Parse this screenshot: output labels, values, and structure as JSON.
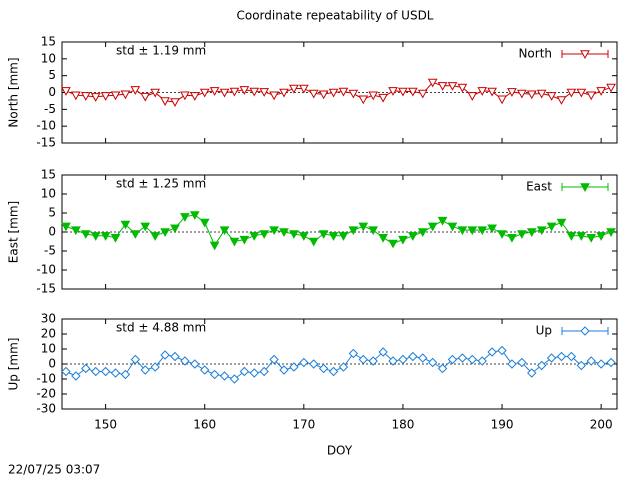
{
  "chart_data": [
    {
      "type": "line",
      "title": "Coordinate repeatability of USDL",
      "ylabel": "North [mm]",
      "annotation": "std ± 1.19 mm",
      "x": [
        146,
        147,
        148,
        149,
        150,
        151,
        152,
        153,
        154,
        155,
        156,
        157,
        158,
        159,
        160,
        161,
        162,
        163,
        164,
        165,
        166,
        167,
        168,
        169,
        170,
        171,
        172,
        173,
        174,
        175,
        176,
        177,
        178,
        179,
        180,
        181,
        182,
        183,
        184,
        185,
        186,
        187,
        188,
        189,
        190,
        191,
        192,
        193,
        194,
        195,
        196,
        197,
        198,
        199,
        200,
        201
      ],
      "series": [
        {
          "name": "North",
          "color": "#cc0000",
          "marker": "triangle-open",
          "values": [
            0.5,
            -0.8,
            -1,
            -1.3,
            -1,
            -0.8,
            -0.5,
            0.8,
            -1.2,
            0,
            -2.5,
            -2.8,
            -0.8,
            -1,
            0,
            0.5,
            0,
            0.3,
            0.8,
            0.3,
            0.2,
            -0.8,
            0,
            1.2,
            1.2,
            -0.3,
            -0.5,
            0,
            0.3,
            -0.3,
            -2,
            -0.8,
            -1.5,
            0.5,
            0.3,
            0.3,
            -0.3,
            3,
            2,
            2,
            1.5,
            -1,
            0.5,
            0.3,
            -2,
            0.2,
            -0.3,
            -0.5,
            -0.3,
            -1,
            -2.2,
            0,
            0,
            -0.8,
            0.5,
            1.5
          ]
        }
      ],
      "xlim": [
        145.6,
        201.6
      ],
      "xticks": [
        150,
        160,
        170,
        180,
        190,
        200
      ],
      "ylim": [
        -15,
        15
      ],
      "yticks": [
        -15,
        -10,
        -5,
        0,
        5,
        10,
        15
      ]
    },
    {
      "type": "line",
      "ylabel": "East [mm]",
      "annotation": "std ± 1.25 mm",
      "x": [
        146,
        147,
        148,
        149,
        150,
        151,
        152,
        153,
        154,
        155,
        156,
        157,
        158,
        159,
        160,
        161,
        162,
        163,
        164,
        165,
        166,
        167,
        168,
        169,
        170,
        171,
        172,
        173,
        174,
        175,
        176,
        177,
        178,
        179,
        180,
        181,
        182,
        183,
        184,
        185,
        186,
        187,
        188,
        189,
        190,
        191,
        192,
        193,
        194,
        195,
        196,
        197,
        198,
        199,
        200,
        201
      ],
      "series": [
        {
          "name": "East",
          "color": "#00bb00",
          "marker": "triangle-filled",
          "values": [
            1.5,
            0.5,
            -0.5,
            -1,
            -1,
            -1.5,
            2,
            -0.5,
            1.5,
            -1,
            0,
            1,
            4,
            4.5,
            2.5,
            -3.5,
            0.5,
            -2.5,
            -2,
            -1,
            -0.5,
            0.5,
            0,
            -0.5,
            -1,
            -2.5,
            -0.5,
            -1,
            -1,
            0.5,
            1.5,
            0.5,
            -1.5,
            -3,
            -2,
            -1,
            0,
            1.5,
            3,
            1.5,
            0.5,
            0.5,
            0.5,
            1,
            -0.5,
            -1.5,
            -0.5,
            0,
            0.5,
            1.5,
            2.5,
            -1,
            -1,
            -1.5,
            -1,
            0
          ]
        }
      ],
      "xlim": [
        145.6,
        201.6
      ],
      "xticks": [
        150,
        160,
        170,
        180,
        190,
        200
      ],
      "ylim": [
        -15,
        15
      ],
      "yticks": [
        -15,
        -10,
        -5,
        0,
        5,
        10,
        15
      ]
    },
    {
      "type": "line",
      "ylabel": "Up [mm]",
      "xlabel": "DOY",
      "annotation": "std ± 4.88 mm",
      "x": [
        146,
        147,
        148,
        149,
        150,
        151,
        152,
        153,
        154,
        155,
        156,
        157,
        158,
        159,
        160,
        161,
        162,
        163,
        164,
        165,
        166,
        167,
        168,
        169,
        170,
        171,
        172,
        173,
        174,
        175,
        176,
        177,
        178,
        179,
        180,
        181,
        182,
        183,
        184,
        185,
        186,
        187,
        188,
        189,
        190,
        191,
        192,
        193,
        194,
        195,
        196,
        197,
        198,
        199,
        200,
        201
      ],
      "series": [
        {
          "name": "Up",
          "color": "#1e7fd8",
          "marker": "diamond-open",
          "values": [
            -5,
            -8,
            -3,
            -5,
            -5,
            -6,
            -7,
            3,
            -4,
            -2,
            6,
            5,
            2,
            0,
            -4,
            -7,
            -8,
            -10,
            -5,
            -6,
            -5,
            3,
            -4,
            -2,
            1,
            0,
            -3,
            -5,
            -2,
            7,
            3,
            2,
            8,
            2,
            3,
            5,
            4,
            1,
            -3,
            3,
            4,
            3,
            2,
            8,
            9,
            0,
            1,
            -6,
            -1,
            4,
            5,
            5,
            -1,
            2,
            0,
            1
          ]
        }
      ],
      "xlim": [
        145.6,
        201.6
      ],
      "xticks": [
        150,
        160,
        170,
        180,
        190,
        200
      ],
      "ylim": [
        -30,
        30
      ],
      "yticks": [
        -30,
        -20,
        -10,
        0,
        10,
        20,
        30
      ]
    }
  ],
  "footer": "22/07/25 03:07"
}
